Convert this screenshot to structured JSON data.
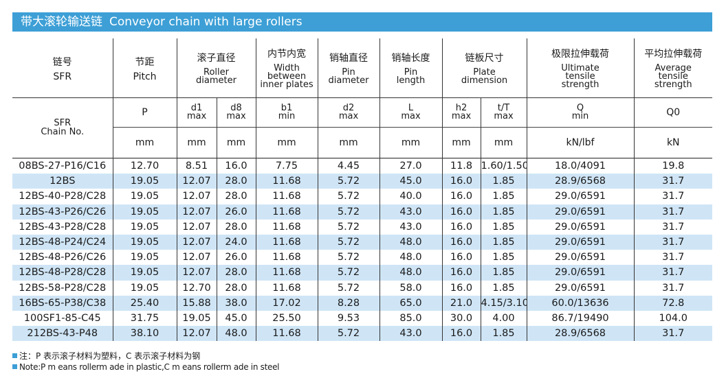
{
  "title": {
    "cn": "带大滚轮输送链",
    "en": "Conveyor chain with large rollers"
  },
  "colors": {
    "accent": "#3d9fd6",
    "stripe": "#cfe5f6"
  },
  "headers": {
    "chain": {
      "cn": "链号",
      "en": "SFR"
    },
    "pitch": {
      "cn": "节距",
      "en": "Pitch"
    },
    "roller": {
      "cn": "滚子直径",
      "en1": "Roller",
      "en2": "diameter"
    },
    "inner": {
      "cn": "内节内宽",
      "en1": "Width",
      "en2": "between",
      "en3": "inner plates"
    },
    "pin": {
      "cn": "销轴直径",
      "en1": "Pin",
      "en2": "diameter"
    },
    "pinlen": {
      "cn": "销轴长度",
      "en1": "Pin",
      "en2": "length"
    },
    "plate": {
      "cn": "链板尺寸",
      "en1": "Plate",
      "en2": "dimension"
    },
    "ult": {
      "cn": "极限拉伸载荷",
      "en1": "Ultimate",
      "en2": "tensile",
      "en3": "strength"
    },
    "avg": {
      "cn": "平均拉伸载荷",
      "en1": "Average",
      "en2": "tensile",
      "en3": "strength"
    }
  },
  "symbols": {
    "chain_sfr": "SFR",
    "chain_no": "Chain No.",
    "p": "P",
    "d1": "d1",
    "d1_sub": "max",
    "d8": "d8",
    "d8_sub": "max",
    "b1": "b1",
    "b1_sub": "min",
    "d2": "d2",
    "d2_sub": "max",
    "l": "L",
    "l_sub": "max",
    "h2": "h2",
    "h2_sub": "max",
    "tt": "t/T",
    "tt_sub": "max",
    "q": "Q",
    "q_sub": "min",
    "q0": "Q0"
  },
  "units": [
    "mm",
    "mm",
    "mm",
    "mm",
    "mm",
    "mm",
    "mm",
    "mm",
    "kN/lbf",
    "kN"
  ],
  "rows": [
    [
      "08BS-27-P16/C16",
      "12.70",
      "8.51",
      "16.0",
      "7.75",
      "4.45",
      "27.0",
      "11.8",
      "1.60/1.50",
      "18.0/4091",
      "19.8"
    ],
    [
      "12BS",
      "19.05",
      "12.07",
      "28.0",
      "11.68",
      "5.72",
      "45.0",
      "16.0",
      "1.85",
      "28.9/6568",
      "31.7"
    ],
    [
      "12BS-40-P28/C28",
      "19.05",
      "12.07",
      "28.0",
      "11.68",
      "5.72",
      "40.0",
      "16.0",
      "1.85",
      "29.0/6591",
      "31.7"
    ],
    [
      "12BS-43-P26/C26",
      "19.05",
      "12.07",
      "26.0",
      "11.68",
      "5.72",
      "43.0",
      "16.0",
      "1.85",
      "29.0/6591",
      "31.7"
    ],
    [
      "12BS-43-P28/C28",
      "19.05",
      "12.07",
      "28.0",
      "11.68",
      "5.72",
      "43.0",
      "16.0",
      "1.85",
      "29.0/6591",
      "31.7"
    ],
    [
      "12BS-48-P24/C24",
      "19.05",
      "12.07",
      "24.0",
      "11.68",
      "5.72",
      "48.0",
      "16.0",
      "1.85",
      "29.0/6591",
      "31.7"
    ],
    [
      "12BS-48-P26/C26",
      "19.05",
      "12.07",
      "26.0",
      "11.68",
      "5.72",
      "48.0",
      "16.0",
      "1.85",
      "29.0/6591",
      "31.7"
    ],
    [
      "12BS-48-P28/C28",
      "19.05",
      "12.07",
      "28.0",
      "11.68",
      "5.72",
      "48.0",
      "16.0",
      "1.85",
      "29.0/6591",
      "31.7"
    ],
    [
      "12BS-58-P28/C28",
      "19.05",
      "12.70",
      "28.0",
      "11.68",
      "5.72",
      "58.0",
      "16.0",
      "1.85",
      "29.0/6591",
      "31.7"
    ],
    [
      "16BS-65-P38/C38",
      "25.40",
      "15.88",
      "38.0",
      "17.02",
      "8.28",
      "65.0",
      "21.0",
      "4.15/3.10",
      "60.0/13636",
      "72.8"
    ],
    [
      "100SF1-85-C45",
      "31.75",
      "19.05",
      "45.0",
      "25.50",
      "9.53",
      "85.0",
      "30.0",
      "4.00",
      "86.7/19490",
      "104.0"
    ],
    [
      "212BS-43-P48",
      "38.10",
      "12.07",
      "48.0",
      "11.68",
      "5.72",
      "43.0",
      "16.0",
      "1.85",
      "28.9/6568",
      "31.7"
    ]
  ],
  "notes": {
    "cn": "注：P 表示滚子材料为塑料，C 表示滚子材料为钢",
    "en": "Note:P m eans rollerm ade in plastic,C m eans rollerm ade in steel"
  }
}
